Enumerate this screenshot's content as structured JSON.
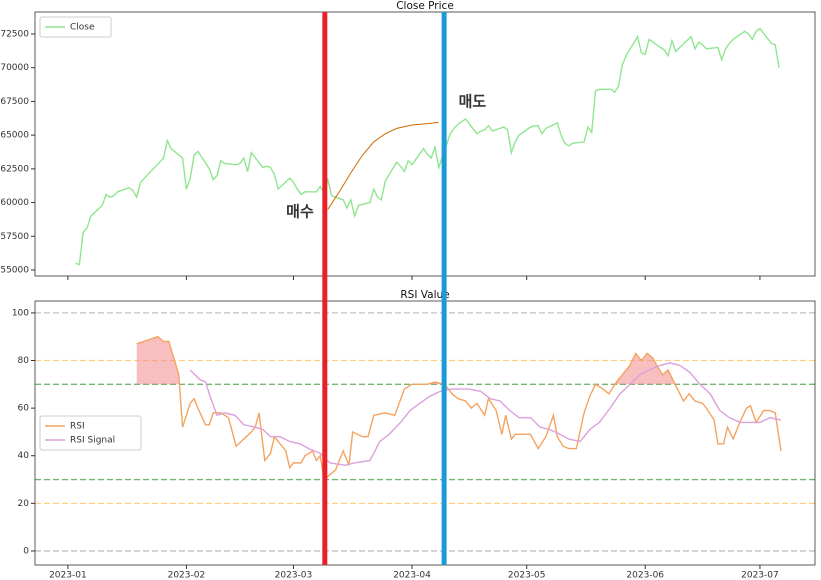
{
  "chart_data": [
    {
      "type": "line",
      "title": "Close Price",
      "xlim": [
        -8.6,
        195.4
      ],
      "ylim": [
        54555,
        74131
      ],
      "yticks": [
        55000,
        57500,
        60000,
        62500,
        65000,
        67500,
        70000,
        72500
      ],
      "legend": "upper left",
      "series": [
        {
          "name": "Close",
          "color": "#90e690",
          "x": [
            2,
            3,
            4,
            5,
            6,
            9,
            10,
            11,
            12,
            13,
            16,
            17,
            18,
            19,
            20,
            25,
            26,
            27,
            30,
            31,
            32,
            33,
            34,
            37,
            38,
            39,
            40,
            41,
            44,
            45,
            46,
            47,
            48,
            51,
            52,
            53,
            54,
            55,
            58,
            59,
            60,
            61,
            62,
            65,
            66,
            67,
            68,
            69,
            72,
            73,
            74,
            75,
            76,
            79,
            80,
            81,
            82,
            83,
            86,
            87,
            88,
            89,
            90,
            93,
            94,
            95,
            96,
            97,
            100,
            101,
            102,
            103,
            104,
            107,
            108,
            109,
            110,
            111,
            114,
            115,
            116,
            117,
            118,
            121,
            122,
            123,
            124,
            125,
            128,
            129,
            130,
            131,
            132,
            135,
            136,
            137,
            138,
            139,
            142,
            143,
            144,
            145,
            146,
            149,
            150,
            151,
            152,
            153,
            156,
            157,
            158,
            159,
            160,
            163,
            164,
            165,
            166,
            167,
            170,
            171,
            172,
            173,
            174,
            177,
            178,
            179,
            180,
            181,
            184,
            185,
            186
          ],
          "values": [
            55500,
            55400,
            57800,
            58100,
            59000,
            59800,
            60600,
            60400,
            60500,
            60800,
            61100,
            60900,
            60400,
            61500,
            61800,
            63300,
            64600,
            64000,
            63300,
            61000,
            61800,
            63500,
            63800,
            62500,
            61700,
            62000,
            63100,
            62900,
            62800,
            62900,
            63300,
            62300,
            63700,
            62600,
            62700,
            62600,
            62100,
            61000,
            61800,
            61500,
            61000,
            60600,
            60800,
            60800,
            61200,
            60700,
            61700,
            60500,
            60200,
            59600,
            60200,
            59000,
            59800,
            60000,
            61000,
            60400,
            60200,
            61600,
            63000,
            62700,
            62300,
            63100,
            62800,
            64000,
            63600,
            63300,
            64100,
            62600,
            65100,
            65500,
            65800,
            66000,
            66200,
            65100,
            65300,
            65400,
            65700,
            65300,
            65600,
            65400,
            63700,
            64500,
            65000,
            65600,
            65700,
            65700,
            65100,
            65500,
            65900,
            65000,
            64400,
            64200,
            64400,
            64500,
            65600,
            65200,
            68300,
            68400,
            68400,
            68200,
            68600,
            70200,
            70900,
            72300,
            71100,
            71000,
            72100,
            71900,
            71300,
            70900,
            72000,
            71200,
            71500,
            72300,
            71400,
            71900,
            71700,
            71400,
            71500,
            70600,
            71400,
            71800,
            72100,
            72700,
            72500,
            72100,
            72700,
            72900,
            71800,
            71700,
            70000
          ]
        },
        {
          "color": "#cc6a00",
          "x": [
            68,
            71,
            74,
            77,
            80,
            83,
            86,
            90,
            94,
            97
          ],
          "values": [
            59500,
            60800,
            62200,
            63500,
            64500,
            65100,
            65500,
            65750,
            65850,
            65950
          ]
        }
      ],
      "vlines": [
        {
          "x": 67.2,
          "color": "#e8202a"
        },
        {
          "x": 98.4,
          "color": "#1a9ad6"
        }
      ],
      "annotations": [
        {
          "text": "매수",
          "x": 60.7,
          "y": 59300,
          "color": "#e8202a"
        },
        {
          "text": "매도",
          "x": 105.8,
          "y": 67458,
          "color": "#1a9ad6"
        }
      ]
    },
    {
      "type": "line",
      "title": "RSI Value",
      "xlim": [
        -8.6,
        195.4
      ],
      "ylim": [
        -5.9,
        105
      ],
      "xticks": [
        {
          "value": 0,
          "label": "2023-01"
        },
        {
          "value": 31,
          "label": "2023-02"
        },
        {
          "value": 59,
          "label": "2023-03"
        },
        {
          "value": 90,
          "label": "2023-04"
        },
        {
          "value": 120,
          "label": "2023-05"
        },
        {
          "value": 151,
          "label": "2023-06"
        },
        {
          "value": 181,
          "label": "2023-07"
        }
      ],
      "yticks": [
        0,
        20,
        40,
        60,
        80,
        100
      ],
      "legend": "center left",
      "hlines": [
        {
          "y": 100,
          "color": "#c0c0c0"
        },
        {
          "y": 80,
          "color": "#ffd080"
        },
        {
          "y": 70,
          "color": "#70b870"
        },
        {
          "y": 30,
          "color": "#70b870"
        },
        {
          "y": 20,
          "color": "#ffd080"
        },
        {
          "y": 0,
          "color": "#c0c0c0"
        }
      ],
      "fill_above": {
        "level": 70,
        "color": "#f08080"
      },
      "series": [
        {
          "name": "RSI",
          "color": "#f4a460",
          "x": [
            18,
            23.5,
            25,
            26.4,
            29,
            30,
            32,
            33,
            34,
            36,
            37,
            38,
            40,
            42,
            44,
            46,
            48,
            49,
            50,
            51.5,
            53,
            54,
            57,
            58,
            59,
            61,
            62,
            64,
            65,
            66,
            67,
            68.5,
            70,
            72,
            73.5,
            74.5,
            77,
            78.5,
            80,
            83,
            85.5,
            88,
            90,
            92,
            94,
            96,
            98.5,
            100.5,
            102,
            104,
            105.5,
            107,
            109,
            110,
            112,
            113.5,
            114.5,
            116,
            117,
            121,
            123,
            125,
            127,
            128,
            129.5,
            131,
            133,
            135,
            136.5,
            138,
            140,
            141.5,
            143.5,
            145.5,
            147,
            148.5,
            150,
            151.5,
            153,
            154,
            155.5,
            157,
            158.5,
            161,
            162.5,
            164,
            166,
            167,
            169,
            170,
            171.5,
            172.5,
            174,
            176,
            177.5,
            178.5,
            180,
            182,
            183.5,
            185,
            186.5
          ],
          "values": [
            87,
            90,
            88,
            88,
            74,
            52,
            62,
            64,
            60,
            53,
            53,
            58,
            58,
            56,
            44,
            47,
            50,
            52,
            58,
            38,
            41,
            48,
            42,
            35,
            37,
            37,
            40,
            42,
            38,
            40,
            30,
            32,
            34,
            42,
            36,
            50,
            48,
            48,
            57,
            58,
            57,
            68,
            70,
            70,
            70,
            71,
            70,
            66,
            64,
            63,
            60,
            62,
            57,
            64,
            59,
            49,
            57,
            47,
            49,
            49,
            43,
            48,
            57,
            48,
            44,
            43,
            43,
            58,
            65,
            70,
            68,
            66,
            71,
            75,
            78,
            83,
            80,
            83,
            81,
            78,
            74,
            76,
            71,
            63,
            66,
            63,
            62,
            60,
            55,
            45,
            45,
            52,
            47,
            55,
            60,
            61,
            54,
            59,
            59,
            58,
            42
          ]
        },
        {
          "name": "RSI Signal",
          "color": "#dda0dd",
          "x": [
            32,
            34.5,
            36,
            37.4,
            39,
            41,
            43.7,
            46,
            49,
            51,
            53,
            55.5,
            58,
            60.7,
            63,
            66,
            68.5,
            72.5,
            75,
            79,
            81.6,
            84,
            87,
            89.5,
            92,
            94.7,
            97.3,
            100,
            102.5,
            105,
            108,
            110.4,
            113,
            115.6,
            118,
            121,
            123.5,
            126,
            128.7,
            131,
            134,
            136.5,
            139,
            141.8,
            144.4,
            147,
            149.6,
            152,
            155,
            157.5,
            160,
            162.7,
            165.3,
            168,
            170.5,
            173,
            175.8,
            178.4,
            181,
            183.6,
            186.5
          ],
          "values": [
            76,
            72,
            71,
            64,
            57,
            58,
            57,
            53,
            52,
            51,
            48,
            48,
            46,
            45,
            43,
            41,
            37,
            36,
            37,
            38,
            46,
            49,
            54,
            59,
            62,
            65,
            67,
            68,
            68,
            68,
            67,
            64,
            63,
            59,
            56,
            56,
            52,
            51,
            49,
            47,
            46,
            51,
            54,
            60,
            66,
            70,
            74,
            76,
            78,
            79,
            78,
            75,
            70,
            66,
            59,
            56,
            54,
            54,
            54,
            56,
            55
          ]
        }
      ]
    }
  ]
}
